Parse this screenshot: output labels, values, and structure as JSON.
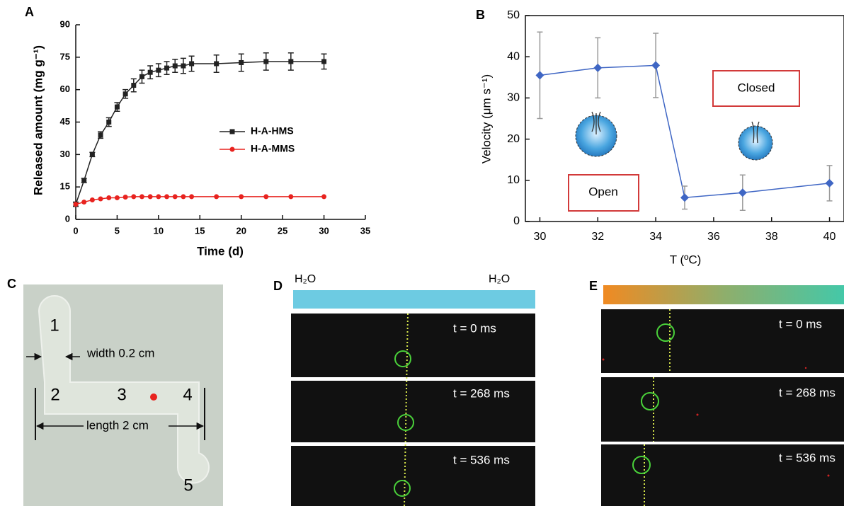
{
  "chart_data": [
    {
      "type": "line",
      "panel_label": "A",
      "xlabel": "Time (d)",
      "ylabel": "Released amount (mg g⁻¹)",
      "x": [
        0,
        1,
        2,
        3,
        4,
        5,
        6,
        7,
        8,
        9,
        10,
        11,
        12,
        13,
        14,
        17,
        20,
        23,
        26,
        30
      ],
      "series": [
        {
          "name": "H-A-HMS",
          "color": "#222222",
          "marker": "square",
          "values": [
            7,
            18,
            30,
            39,
            45,
            52,
            58,
            62,
            66,
            68,
            69,
            70,
            71,
            71,
            72,
            72,
            72.5,
            73,
            73,
            73
          ],
          "errors": [
            1,
            1,
            1,
            1.5,
            2,
            2,
            2,
            3,
            3,
            3,
            3,
            3,
            3,
            3.5,
            3.5,
            4,
            4,
            4,
            4,
            3.5
          ]
        },
        {
          "name": "H-A-MMS",
          "color": "#e8231f",
          "marker": "circle",
          "values": [
            7,
            8,
            9,
            9.5,
            10,
            10,
            10.3,
            10.5,
            10.5,
            10.5,
            10.5,
            10.5,
            10.5,
            10.5,
            10.5,
            10.5,
            10.5,
            10.5,
            10.5,
            10.5
          ]
        }
      ],
      "xlim": [
        0,
        35
      ],
      "xticks": [
        0,
        5,
        10,
        15,
        20,
        25,
        30,
        35
      ],
      "ylim": [
        0,
        90
      ],
      "yticks": [
        0,
        15,
        30,
        45,
        60,
        75,
        90
      ]
    },
    {
      "type": "line",
      "panel_label": "B",
      "xlabel": "T (ºC)",
      "ylabel": "Velocity (μm s⁻¹)",
      "x": [
        30,
        32,
        34,
        35,
        37,
        40
      ],
      "values": [
        35.5,
        37.3,
        37.9,
        5.8,
        7,
        9.3
      ],
      "errors": [
        10.5,
        7.3,
        7.8,
        2.8,
        4.3,
        4.3
      ],
      "color": "#3f66c4",
      "marker": "diamond",
      "error_color": "#999999",
      "xlim": [
        29.5,
        40.5
      ],
      "xticks": [
        30,
        32,
        34,
        36,
        38,
        40
      ],
      "ylim": [
        0,
        50
      ],
      "yticks": [
        0,
        10,
        20,
        30,
        40,
        50
      ],
      "annotations": [
        "Open",
        "Closed"
      ]
    }
  ],
  "panel_c": {
    "label": "C",
    "numbers": [
      "1",
      "2",
      "3",
      "4",
      "5"
    ],
    "width_label": "width 0.2 cm",
    "length_label": "length 2 cm"
  },
  "panel_d": {
    "label": "D",
    "left_medium": "H₂O",
    "right_medium": "H₂O",
    "times": [
      "t = 0 ms",
      "t = 268 ms",
      "t = 536 ms"
    ]
  },
  "panel_e": {
    "label": "E",
    "times": [
      "t = 0 ms",
      "t = 268 ms",
      "t = 536 ms"
    ]
  }
}
